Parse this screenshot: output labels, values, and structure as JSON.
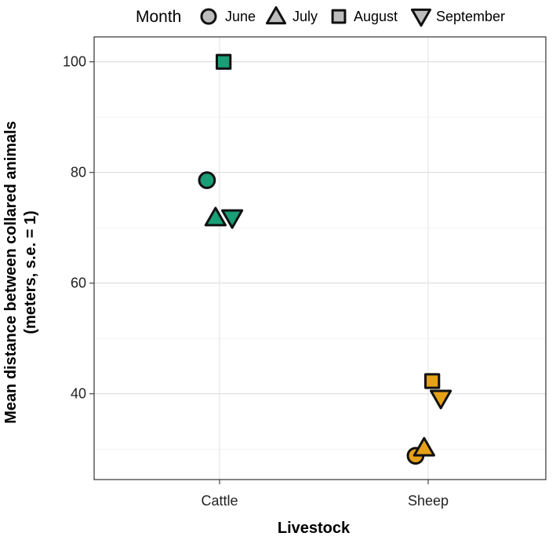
{
  "chart_data": {
    "type": "scatter",
    "title": "",
    "xlabel": "Livestock",
    "ylabel_lines": [
      "Mean distance between collared animals",
      "(meters, s.e. = 1)"
    ],
    "categories": [
      "Cattle",
      "Sheep"
    ],
    "ylim": [
      24.5,
      104.5
    ],
    "yticks": [
      40,
      60,
      80,
      100
    ],
    "ytick_labels": [
      "40",
      "60",
      "80",
      "100"
    ],
    "grid": true,
    "legend": {
      "position": "top",
      "title": "Month",
      "entries": [
        {
          "label": "June",
          "shape": "circle"
        },
        {
          "label": "July",
          "shape": "triangle-up"
        },
        {
          "label": "August",
          "shape": "square"
        },
        {
          "label": "September",
          "shape": "triangle-down"
        }
      ]
    },
    "colors": {
      "Cattle": "#1a9e77",
      "Sheep": "#e6a117",
      "legend_fill": "#bdbdbd"
    },
    "series": [
      {
        "name": "June",
        "shape": "circle",
        "points": [
          {
            "category": "Cattle",
            "offset": -0.25,
            "value": 78.6
          },
          {
            "category": "Sheep",
            "offset": -0.25,
            "value": 28.8
          }
        ]
      },
      {
        "name": "July",
        "shape": "triangle-up",
        "points": [
          {
            "category": "Cattle",
            "offset": -0.08,
            "value": 71.8
          },
          {
            "category": "Sheep",
            "offset": -0.08,
            "value": 30.2
          }
        ]
      },
      {
        "name": "August",
        "shape": "square",
        "points": [
          {
            "category": "Cattle",
            "offset": 0.08,
            "value": 100.0
          },
          {
            "category": "Sheep",
            "offset": 0.08,
            "value": 42.3
          }
        ]
      },
      {
        "name": "September",
        "shape": "triangle-down",
        "points": [
          {
            "category": "Cattle",
            "offset": 0.25,
            "value": 71.8
          },
          {
            "category": "Sheep",
            "offset": 0.25,
            "value": 39.2
          }
        ]
      }
    ]
  }
}
